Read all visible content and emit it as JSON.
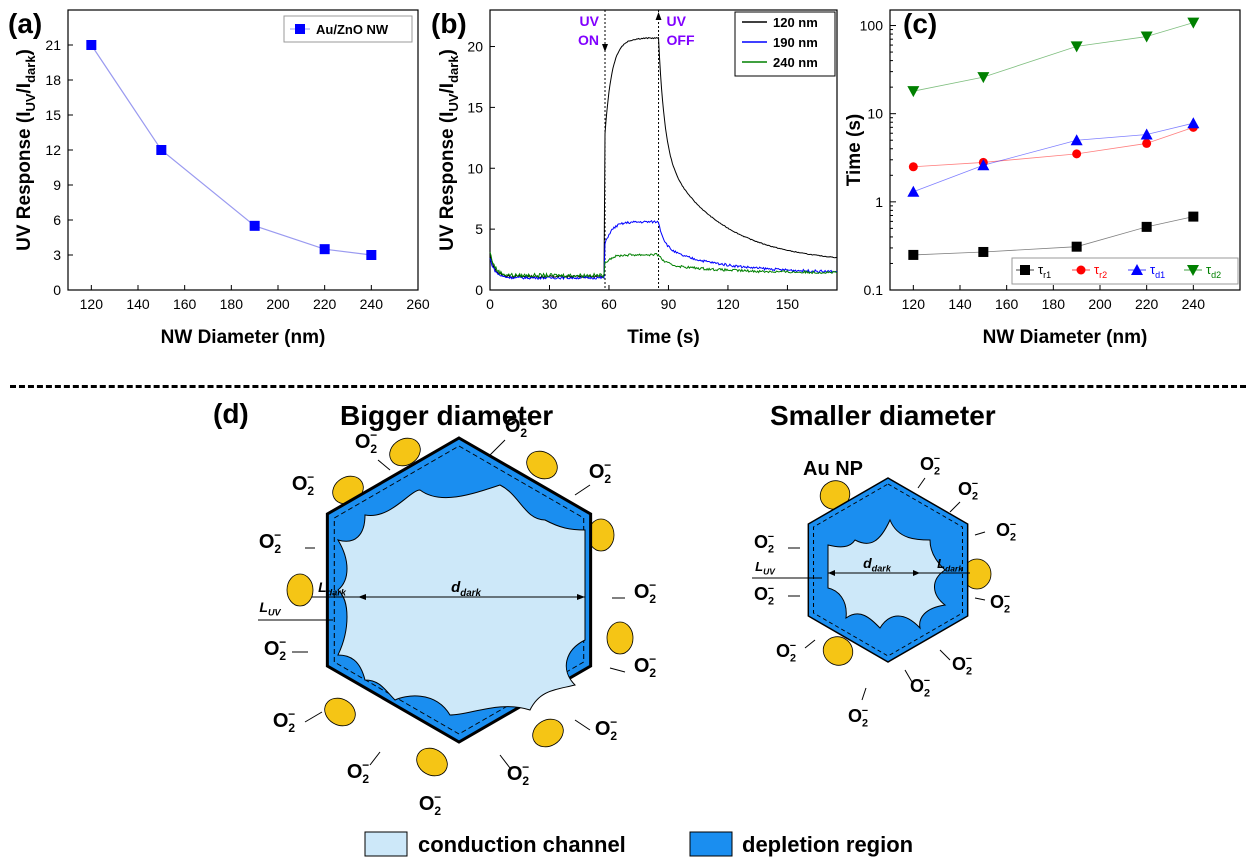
{
  "colors": {
    "blue": "#0000ff",
    "black": "#000000",
    "red": "#ff0000",
    "green": "#008000",
    "purple": "#8000ff",
    "depletion": "#1a8ef0",
    "channel": "#cde8f9",
    "gold": "#f5c515"
  },
  "panels": {
    "a": "(a)",
    "b": "(b)",
    "c": "(c)",
    "d": "(d)"
  },
  "chart_data": [
    {
      "type": "line",
      "panel": "(a)",
      "xlabel": "NW Diameter (nm)",
      "ylabel": "UV Response (I",
      "ylabel_sub1": "UV",
      "ylabel_mid": "/I",
      "ylabel_sub2": "dark",
      "ylabel_end": ")",
      "xlim": [
        110,
        260
      ],
      "ylim": [
        0,
        24
      ],
      "xticks": [
        120,
        140,
        160,
        180,
        200,
        220,
        240,
        260
      ],
      "yticks": [
        0,
        3,
        6,
        9,
        12,
        15,
        18,
        21
      ],
      "grid": false,
      "legend": "top-right",
      "series": [
        {
          "name": "Au/ZnO NW",
          "marker": "square",
          "color": "#0000ff",
          "x": [
            120,
            150,
            190,
            220,
            240
          ],
          "y": [
            21,
            12,
            5.5,
            3.5,
            3
          ]
        }
      ]
    },
    {
      "type": "line",
      "panel": "(b)",
      "xlabel": "Time (s)",
      "ylabel": "UV Response (I",
      "ylabel_sub1": "UV",
      "ylabel_mid": "/I",
      "ylabel_sub2": "dark",
      "ylabel_end": ")",
      "xlim": [
        0,
        175
      ],
      "ylim": [
        0,
        23
      ],
      "xticks": [
        0,
        30,
        60,
        90,
        120,
        150
      ],
      "yticks": [
        0,
        5,
        10,
        15,
        20
      ],
      "grid": false,
      "legend": "top-right",
      "annotations": [
        {
          "line1": "UV",
          "line2": "ON",
          "x": 58
        },
        {
          "line1": "UV",
          "line2": "OFF",
          "x": 85
        }
      ],
      "series": [
        {
          "name": "120 nm",
          "color": "#000000",
          "t_on": 58,
          "t_off": 85,
          "baseline": 1.1,
          "peak": 20.7,
          "tail": 2.2
        },
        {
          "name": "190 nm",
          "color": "#0000ff",
          "t_on": 58,
          "t_off": 85,
          "baseline": 1.0,
          "peak": 5.6,
          "tail": 1.4
        },
        {
          "name": "240 nm",
          "color": "#008000",
          "t_on": 58,
          "t_off": 85,
          "baseline": 1.2,
          "peak": 2.9,
          "tail": 1.4
        }
      ]
    },
    {
      "type": "line",
      "panel": "(c)",
      "xlabel": "NW Diameter (nm)",
      "ylabel": "Time (s)",
      "scale_y": "log",
      "xlim": [
        110,
        260
      ],
      "ylim": [
        0.1,
        150
      ],
      "xticks": [
        120,
        140,
        160,
        180,
        200,
        220,
        240
      ],
      "yticks": [
        0.1,
        1,
        10,
        100
      ],
      "ytick_labels": [
        "0.1",
        "1",
        "10",
        "100"
      ],
      "grid": false,
      "legend": "bottom-right",
      "series": [
        {
          "name": "τ",
          "sub": "r1",
          "marker": "square",
          "color": "#000000",
          "x": [
            120,
            150,
            190,
            220,
            240
          ],
          "y": [
            0.25,
            0.27,
            0.31,
            0.52,
            0.68
          ]
        },
        {
          "name": "τ",
          "sub": "r2",
          "marker": "circle",
          "color": "#ff0000",
          "x": [
            120,
            150,
            190,
            220,
            240
          ],
          "y": [
            2.5,
            2.8,
            3.5,
            4.6,
            7.0
          ]
        },
        {
          "name": "τ",
          "sub": "d1",
          "marker": "triangle-up",
          "color": "#0000ff",
          "x": [
            120,
            150,
            190,
            220,
            240
          ],
          "y": [
            1.3,
            2.6,
            5.0,
            5.8,
            7.8
          ]
        },
        {
          "name": "τ",
          "sub": "d2",
          "marker": "triangle-down",
          "color": "#008000",
          "x": [
            120,
            150,
            190,
            220,
            240
          ],
          "y": [
            18,
            26,
            58,
            75,
            108
          ]
        }
      ]
    }
  ],
  "schematic": {
    "big_title": "Bigger diameter",
    "small_title": "Smaller diameter",
    "oxygen_main": "O",
    "oxygen_sub": "2",
    "oxygen_sup": "−",
    "au_np": "Au NP",
    "l_main": "L",
    "l_dark_sub": "dark",
    "l_uv_sub": "UV",
    "d_main": "d",
    "d_dark_sub": "dark",
    "legend_channel": "conduction channel",
    "legend_depletion": "depletion region"
  }
}
